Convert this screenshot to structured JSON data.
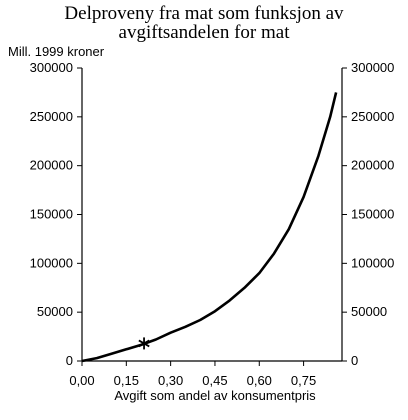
{
  "chart_data": {
    "type": "line",
    "title_lines": [
      "Delproveny fra mat som funksjon av",
      "avgiftsandelen for mat"
    ],
    "ylabel": "Mill. 1999 kroner",
    "xlabel": "Avgift som andel av konsumentpris",
    "xlim": [
      0,
      0.88
    ],
    "ylim": [
      0,
      300000
    ],
    "x_ticks": [
      "0,00",
      "0,15",
      "0,30",
      "0,45",
      "0,60",
      "0,75"
    ],
    "x_tick_values": [
      0,
      0.15,
      0.3,
      0.45,
      0.6,
      0.75
    ],
    "y_ticks": [
      "0",
      "50000",
      "100000",
      "150000",
      "200000",
      "250000",
      "300000"
    ],
    "y_tick_values": [
      0,
      50000,
      100000,
      150000,
      200000,
      250000,
      300000
    ],
    "grid": false,
    "legend": "none",
    "series": [
      {
        "x": [
          0,
          0.05,
          0.1,
          0.15,
          0.2,
          0.25,
          0.3,
          0.35,
          0.4,
          0.45,
          0.5,
          0.55,
          0.6,
          0.65,
          0.7,
          0.75,
          0.8,
          0.84,
          0.86
        ],
        "y": [
          0,
          3000,
          7500,
          12000,
          16500,
          22000,
          29000,
          35000,
          42000,
          51000,
          62000,
          75000,
          90000,
          110000,
          135000,
          168000,
          210000,
          250000,
          275000
        ]
      }
    ],
    "marker": {
      "x": 0.21,
      "y": 18000,
      "symbol": "*"
    },
    "color": "#000000"
  }
}
